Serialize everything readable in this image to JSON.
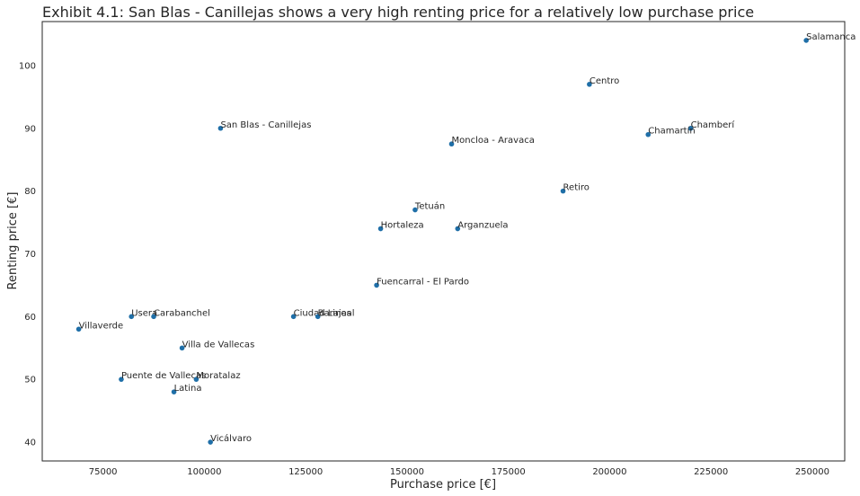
{
  "chart_data": {
    "type": "scatter",
    "title": "Exhibit 4.1: San Blas - Canillejas shows a very high renting price for a relatively low purchase price",
    "xlabel": "Purchase price [€]",
    "ylabel": "Renting price [€]",
    "xlim": [
      60000,
      258000
    ],
    "ylim": [
      37,
      107
    ],
    "xticks": [
      75000,
      100000,
      125000,
      150000,
      175000,
      200000,
      225000,
      250000
    ],
    "xtick_labels": [
      "75000",
      "100000",
      "125000",
      "150000",
      "175000",
      "200000",
      "225000",
      "250000"
    ],
    "yticks": [
      40,
      50,
      60,
      70,
      80,
      90,
      100
    ],
    "ytick_labels": [
      "40",
      "50",
      "60",
      "70",
      "80",
      "90",
      "100"
    ],
    "grid": false,
    "color": "#1f6fa8",
    "points": [
      {
        "label": "Salamanca",
        "x": 248500,
        "y": 104
      },
      {
        "label": "Centro",
        "x": 195000,
        "y": 97
      },
      {
        "label": "San Blas - Canillejas",
        "x": 104000,
        "y": 90
      },
      {
        "label": "Chamberí",
        "x": 220000,
        "y": 90
      },
      {
        "label": "Chamartín",
        "x": 209500,
        "y": 89
      },
      {
        "label": "Moncloa - Aravaca",
        "x": 161000,
        "y": 87.5
      },
      {
        "label": "Retiro",
        "x": 188500,
        "y": 80
      },
      {
        "label": "Tetuán",
        "x": 152000,
        "y": 77
      },
      {
        "label": "Hortaleza",
        "x": 143500,
        "y": 74
      },
      {
        "label": "Arganzuela",
        "x": 162500,
        "y": 74
      },
      {
        "label": "Fuencarral - El Pardo",
        "x": 142500,
        "y": 65
      },
      {
        "label": "Usera",
        "x": 82000,
        "y": 60
      },
      {
        "label": "Carabanchel",
        "x": 87500,
        "y": 60
      },
      {
        "label": "Ciudad Lineal",
        "x": 122000,
        "y": 60
      },
      {
        "label": "Barajas",
        "x": 128000,
        "y": 60
      },
      {
        "label": "Villaverde",
        "x": 69000,
        "y": 58
      },
      {
        "label": "Villa de Vallecas",
        "x": 94500,
        "y": 55
      },
      {
        "label": "Puente de Vallecas",
        "x": 79500,
        "y": 50
      },
      {
        "label": "Moratalaz",
        "x": 98000,
        "y": 50
      },
      {
        "label": "Latina",
        "x": 92500,
        "y": 48
      },
      {
        "label": "Vicálvaro",
        "x": 101500,
        "y": 40
      }
    ]
  }
}
